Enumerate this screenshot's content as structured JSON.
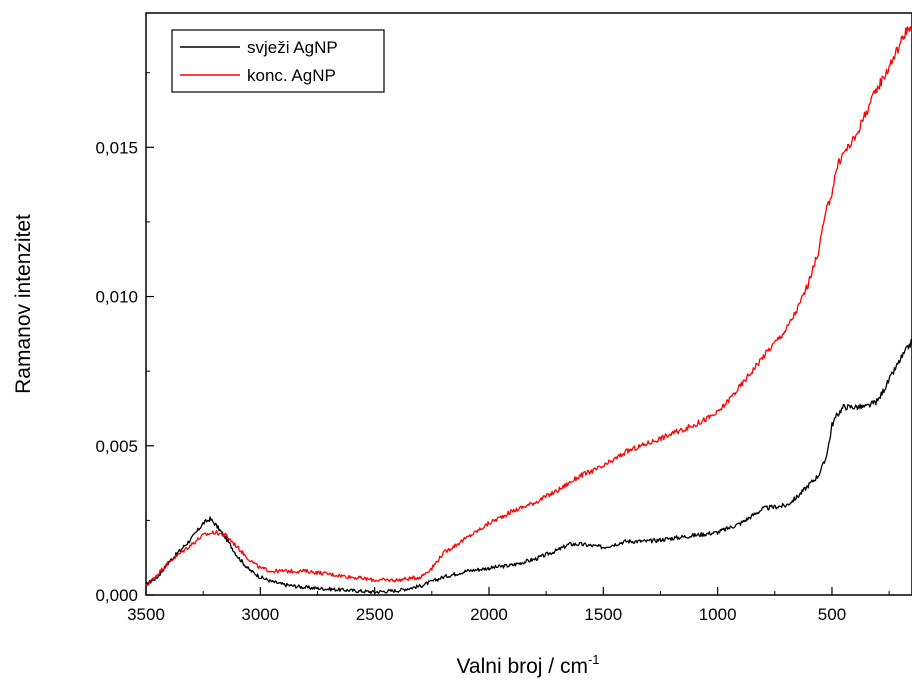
{
  "chart_data": {
    "type": "line",
    "title": "",
    "xlabel": "Valni broj / cm",
    "xlabel_superscript": "-1",
    "ylabel": "Ramanov intenzitet",
    "xlim": [
      3500,
      150
    ],
    "ylim": [
      0.0,
      0.0195
    ],
    "x_reversed": true,
    "grid": false,
    "legend_position": "top-left",
    "x_ticks": [
      {
        "value": 3500,
        "label": "3500"
      },
      {
        "value": 3000,
        "label": "3000"
      },
      {
        "value": 2500,
        "label": "2500"
      },
      {
        "value": 2000,
        "label": "2000"
      },
      {
        "value": 1500,
        "label": "1500"
      },
      {
        "value": 1000,
        "label": "1000"
      },
      {
        "value": 500,
        "label": "500"
      }
    ],
    "y_ticks": [
      {
        "value": 0.0,
        "label": "0,000"
      },
      {
        "value": 0.005,
        "label": "0,005"
      },
      {
        "value": 0.01,
        "label": "0,010"
      },
      {
        "value": 0.015,
        "label": "0,015"
      }
    ],
    "series": [
      {
        "name": "svježi AgNP",
        "color": "#000000",
        "x": [
          3500,
          3450,
          3400,
          3350,
          3300,
          3250,
          3220,
          3200,
          3150,
          3100,
          3050,
          3000,
          2950,
          2900,
          2800,
          2700,
          2600,
          2500,
          2400,
          2300,
          2200,
          2100,
          2000,
          1900,
          1800,
          1700,
          1650,
          1600,
          1500,
          1400,
          1300,
          1200,
          1100,
          1000,
          900,
          800,
          700,
          650,
          600,
          560,
          530,
          510,
          500,
          480,
          450,
          400,
          350,
          300,
          250,
          200,
          150
        ],
        "y": [
          0.00035,
          0.0006,
          0.0011,
          0.0015,
          0.0019,
          0.0024,
          0.00255,
          0.0024,
          0.0019,
          0.0013,
          0.00085,
          0.0006,
          0.00045,
          0.00035,
          0.00025,
          0.0002,
          0.00015,
          0.0001,
          0.00015,
          0.0003,
          0.0006,
          0.0008,
          0.0009,
          0.001,
          0.0012,
          0.0015,
          0.0017,
          0.0017,
          0.0016,
          0.0018,
          0.0018,
          0.0019,
          0.002,
          0.0021,
          0.0024,
          0.0029,
          0.003,
          0.0033,
          0.0037,
          0.004,
          0.0045,
          0.0052,
          0.0057,
          0.006,
          0.0063,
          0.0063,
          0.0063,
          0.0065,
          0.0072,
          0.0079,
          0.0085
        ]
      },
      {
        "name": "konc. AgNP",
        "color": "#ff0000",
        "x": [
          3500,
          3450,
          3400,
          3350,
          3300,
          3250,
          3200,
          3150,
          3100,
          3050,
          3000,
          2950,
          2900,
          2800,
          2700,
          2600,
          2500,
          2400,
          2300,
          2250,
          2200,
          2100,
          2000,
          1900,
          1800,
          1700,
          1600,
          1500,
          1400,
          1300,
          1200,
          1100,
          1000,
          900,
          800,
          700,
          650,
          600,
          560,
          530,
          500,
          480,
          450,
          400,
          350,
          300,
          250,
          200,
          170,
          150
        ],
        "y": [
          0.0003,
          0.0007,
          0.0011,
          0.0014,
          0.0017,
          0.002,
          0.0021,
          0.002,
          0.0016,
          0.0012,
          0.0009,
          0.0008,
          0.0008,
          0.0008,
          0.0007,
          0.0006,
          0.0005,
          0.0005,
          0.0006,
          0.0009,
          0.0014,
          0.0019,
          0.0024,
          0.0028,
          0.0031,
          0.0035,
          0.004,
          0.0043,
          0.0048,
          0.0051,
          0.0054,
          0.0057,
          0.0061,
          0.007,
          0.008,
          0.0089,
          0.0096,
          0.0105,
          0.0115,
          0.0127,
          0.0135,
          0.0143,
          0.0148,
          0.0153,
          0.0162,
          0.017,
          0.0177,
          0.0185,
          0.019,
          0.0188
        ]
      }
    ]
  }
}
